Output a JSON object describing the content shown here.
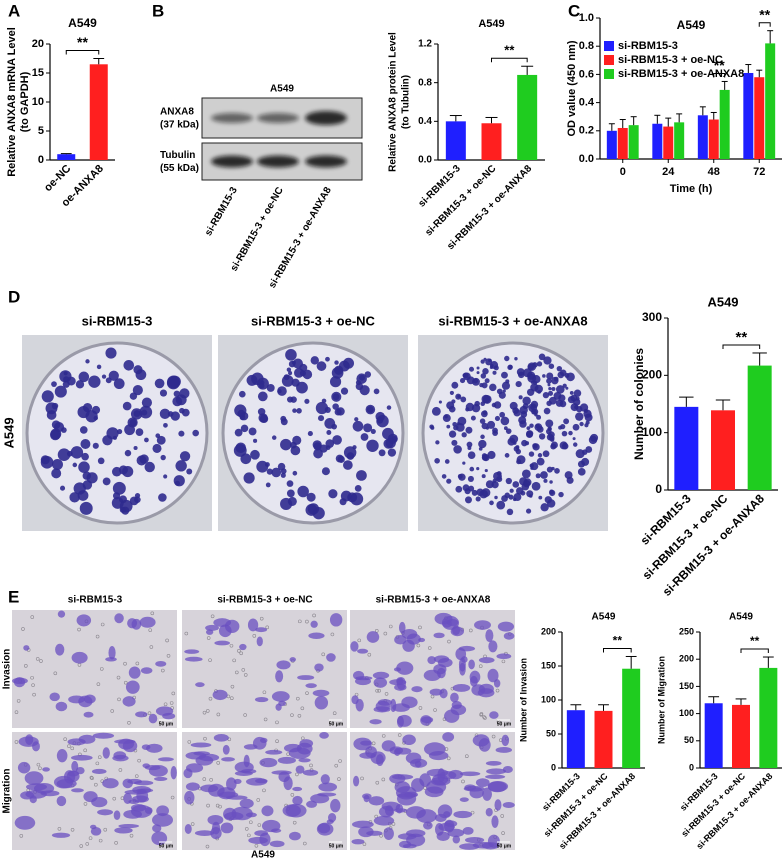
{
  "panel_labels": [
    "A",
    "B",
    "C",
    "D",
    "E"
  ],
  "blot": {
    "title": "A549",
    "bands": [
      [
        "ANXA8",
        "(37 kDa)"
      ],
      [
        "Tubulin",
        "(55 kDa)"
      ]
    ],
    "lanes": [
      "si-RBM15-3",
      "si-RBM15-3 + oe-NC",
      "si-RBM15-3 + oe-ANXA8"
    ]
  },
  "colony": {
    "row_label": "A549",
    "columns": [
      "si-RBM15-3",
      "si-RBM15-3 + oe-NC",
      "si-RBM15-3 + oe-ANXA8"
    ]
  },
  "transwell": {
    "columns": [
      "si-RBM15-3",
      "si-RBM15-3 + oe-NC",
      "si-RBM15-3 + oe-ANXA8"
    ],
    "rows": [
      "Invasion",
      "Migration"
    ],
    "cell_line": "A549",
    "scale_bar": "50 μm"
  },
  "chart_data": [
    {
      "type": "bar",
      "title": "A549",
      "ylabel": [
        "Relative ANXA8 mRNA Level",
        "(to GAPDH)"
      ],
      "categories": [
        "oe-NC",
        "oe-ANXA8"
      ],
      "values": [
        1,
        16.5
      ],
      "errors": [
        0.1,
        1.0
      ],
      "colors": [
        "#1f1fff",
        "#ff1f1f"
      ],
      "ylim": [
        0,
        20
      ],
      "yticks": [
        0,
        5,
        10,
        15,
        20
      ],
      "annotations": [
        null,
        "**"
      ]
    },
    {
      "type": "bar",
      "title": "A549",
      "ylabel": [
        "Relative ANXA8 protein Level",
        "(to Tubulin)"
      ],
      "categories": [
        "si-RBM15-3",
        "si-RBM15-3 + oe-NC",
        "si-RBM15-3 + oe-ANXA8"
      ],
      "values": [
        0.4,
        0.38,
        0.88
      ],
      "errors": [
        0.06,
        0.06,
        0.09
      ],
      "colors": [
        "#1f1fff",
        "#ff1f1f",
        "#1fcc1f"
      ],
      "ylim": [
        0,
        1.2
      ],
      "yticks": [
        {
          "value": 0,
          "label": "0.0"
        },
        0.4,
        0.8,
        1.2
      ],
      "annotations": [
        null,
        null,
        "**"
      ]
    },
    {
      "type": "grouped_bar",
      "title": "A549",
      "ylabel": [
        "OD value (450 nm)"
      ],
      "xlabel": "Time (h)",
      "categories": [
        "0",
        "24",
        "48",
        "72"
      ],
      "legend": "upper left",
      "series": [
        {
          "name": "si-RBM15-3",
          "color": "#1f1fff",
          "values": [
            0.2,
            0.25,
            0.31,
            0.61
          ],
          "errors": [
            0.05,
            0.06,
            0.06,
            0.06
          ]
        },
        {
          "name": "si-RBM15-3 + oe-NC",
          "color": "#ff1f1f",
          "values": [
            0.22,
            0.23,
            0.28,
            0.58
          ],
          "errors": [
            0.06,
            0.06,
            0.05,
            0.05
          ]
        },
        {
          "name": "si-RBM15-3 + oe-ANXA8",
          "color": "#1fcc1f",
          "values": [
            0.24,
            0.26,
            0.49,
            0.82
          ],
          "errors": [
            0.06,
            0.06,
            0.06,
            0.09
          ]
        }
      ],
      "ylim": [
        0,
        1.0
      ],
      "yticks": [
        {
          "value": 0,
          "label": "0.0"
        },
        0.2,
        0.4,
        0.6,
        0.8,
        {
          "value": 1.0,
          "label": "1.0"
        }
      ],
      "annotations": [
        null,
        null,
        "**",
        "**"
      ]
    },
    {
      "type": "bar",
      "title": "A549",
      "ylabel": [
        "Number of colonies"
      ],
      "categories": [
        "si-RBM15-3",
        "si-RBM15-3 + oe-NC",
        "si-RBM15-3 + oe-ANXA8"
      ],
      "values": [
        145,
        139,
        217
      ],
      "errors": [
        17,
        18,
        22
      ],
      "colors": [
        "#1f1fff",
        "#ff1f1f",
        "#1fcc1f"
      ],
      "ylim": [
        0,
        300
      ],
      "yticks": [
        0,
        100,
        200,
        300
      ],
      "annotations": [
        null,
        null,
        "**"
      ]
    },
    {
      "type": "bar",
      "title": "A549",
      "ylabel": [
        "Number of Invasion"
      ],
      "categories": [
        "si-RBM15-3",
        "si-RBM15-3 + oe-NC",
        "si-RBM15-3 + oe-ANXA8"
      ],
      "values": [
        85,
        84,
        146
      ],
      "errors": [
        8,
        9,
        18
      ],
      "colors": [
        "#1f1fff",
        "#ff1f1f",
        "#1fcc1f"
      ],
      "ylim": [
        0,
        200
      ],
      "yticks": [
        0,
        50,
        100,
        150,
        200
      ],
      "annotations": [
        null,
        null,
        "**"
      ]
    },
    {
      "type": "bar",
      "title": "A549",
      "ylabel": [
        "Number of Migration"
      ],
      "categories": [
        "si-RBM15-3",
        "si-RBM15-3 + oe-NC",
        "si-RBM15-3 + oe-ANXA8"
      ],
      "values": [
        119,
        116,
        184
      ],
      "errors": [
        12,
        11,
        20
      ],
      "colors": [
        "#1f1fff",
        "#ff1f1f",
        "#1fcc1f"
      ],
      "ylim": [
        0,
        250
      ],
      "yticks": [
        0,
        50,
        100,
        150,
        200,
        250
      ],
      "annotations": [
        null,
        null,
        "**"
      ]
    }
  ]
}
